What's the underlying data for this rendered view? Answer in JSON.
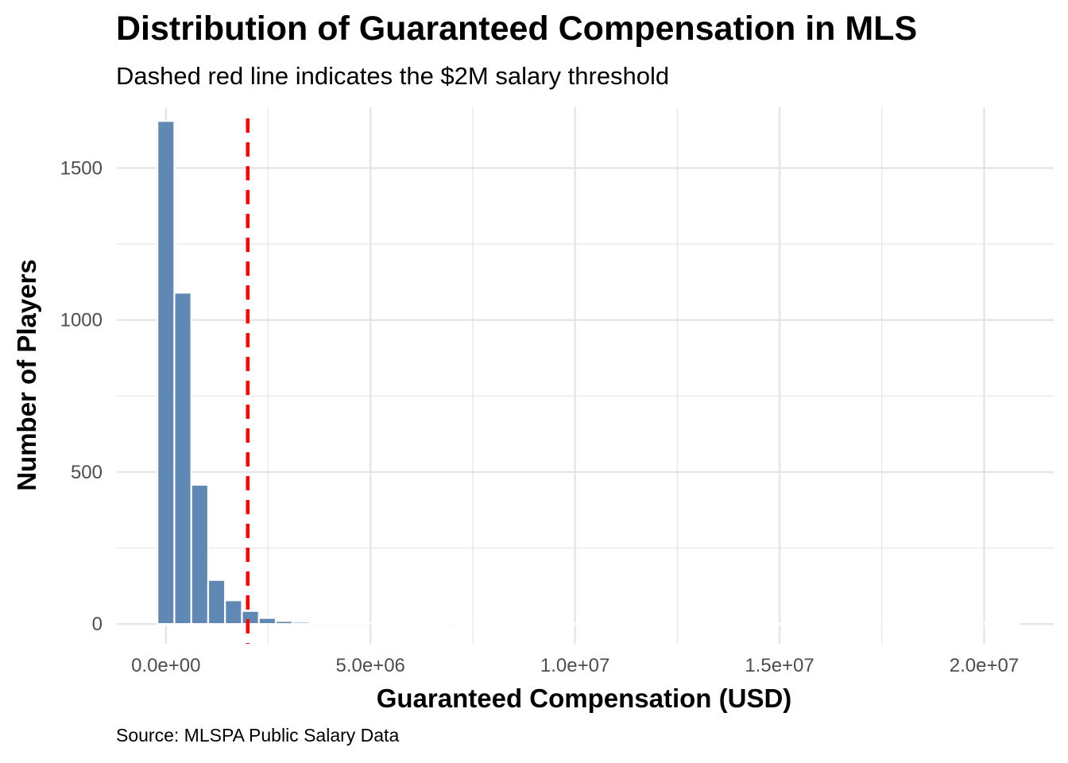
{
  "chart_data": {
    "type": "bar",
    "title": "Distribution of Guaranteed Compensation in MLS",
    "subtitle": "Dashed red line indicates the $2M salary threshold",
    "caption": "Source: MLSPA Public Salary Data",
    "xlabel": "Guaranteed Compensation (USD)",
    "ylabel": "Number of Players",
    "bin_width": 413000,
    "bins_start": -206500,
    "values": [
      1655,
      1090,
      458,
      145,
      78,
      43,
      20,
      10,
      7,
      5,
      2,
      4,
      2,
      1,
      1,
      1,
      1,
      2,
      1,
      1,
      1,
      1,
      1,
      1,
      1,
      1,
      1,
      1,
      1,
      1,
      1,
      1,
      1,
      1,
      1,
      1,
      1,
      1,
      1,
      1,
      1,
      1,
      1,
      1,
      1,
      1,
      1,
      1,
      1,
      1,
      1
    ],
    "xlim": [
      -1200000,
      21700000
    ],
    "ylim": [
      -65,
      1700
    ],
    "x_ticks": [
      0,
      5000000,
      10000000,
      15000000,
      20000000
    ],
    "x_tick_labels": [
      "0.0e+00",
      "5.0e+06",
      "1.0e+07",
      "1.5e+07",
      "2.0e+07"
    ],
    "y_ticks": [
      0,
      500,
      1000,
      1500
    ],
    "y_tick_labels": [
      "0",
      "500",
      "1000",
      "1500"
    ],
    "threshold": {
      "value": 2000000
    },
    "grid": true,
    "legend": "none",
    "colors": {
      "bar": "#4e7bac",
      "threshold": "#ff0000",
      "grid": "#e5e5e5"
    }
  }
}
